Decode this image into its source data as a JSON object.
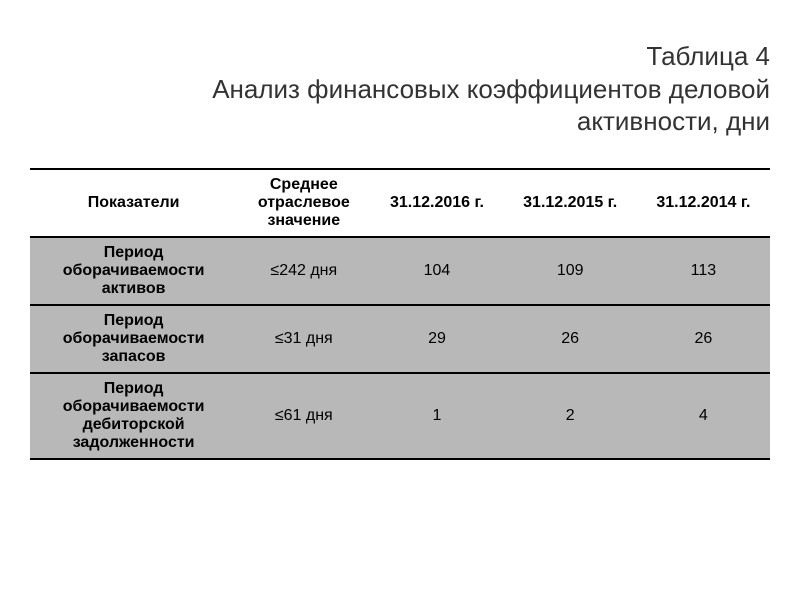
{
  "title": {
    "line1": "Таблица 4",
    "line2": "Анализ финансовых коэффициентов деловой",
    "line3": "активности, дни"
  },
  "table": {
    "columns": [
      "Показатели",
      "Среднее отраслевое значение",
      "31.12.2016 г.",
      "31.12.2015 г.",
      "31.12.2014 г."
    ],
    "rows": [
      {
        "metric": "Период оборачиваемости активов",
        "benchmark": "≤242 дня",
        "v2016": "104",
        "v2015": "109",
        "v2014": "113"
      },
      {
        "metric": "Период оборачиваемости запасов",
        "benchmark": "≤31 дня",
        "v2016": "29",
        "v2015": "26",
        "v2014": "26"
      },
      {
        "metric": "Период оборачиваемости дебиторской задолженности",
        "benchmark": "≤61 дня",
        "v2016": "1",
        "v2015": "2",
        "v2014": "4"
      }
    ]
  },
  "style": {
    "title_color": "#333333",
    "title_fontsize": 26,
    "cell_fontsize": 16,
    "header_bg": "#ffffff",
    "row_bg": "#b8b8b8",
    "border_color": "#000000",
    "text_color": "#000000",
    "column_widths_pct": [
      28,
      18,
      18,
      18,
      18
    ]
  }
}
